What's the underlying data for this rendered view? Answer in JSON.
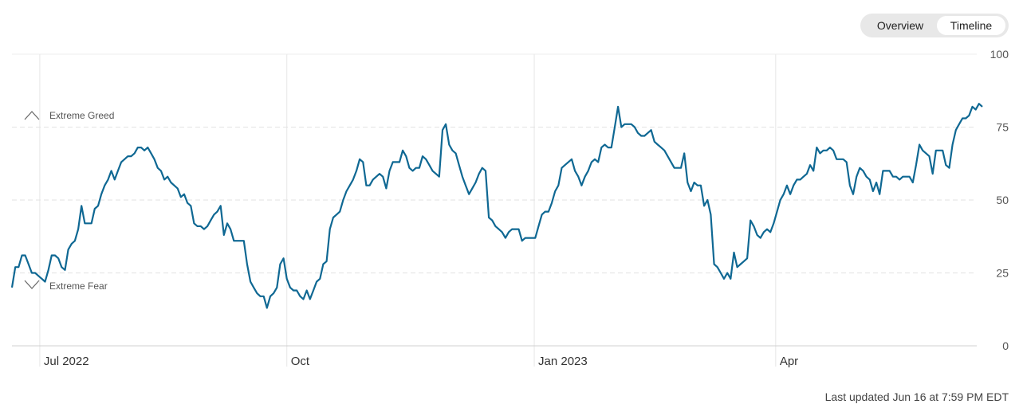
{
  "header": {
    "buttons": [
      "Overview",
      "Timeline"
    ]
  },
  "chart_data": {
    "type": "line",
    "annotations": [
      "Extreme Greed",
      "Extreme Fear"
    ],
    "color": "#0f6893",
    "values": [
      20,
      27,
      27,
      31,
      31,
      28,
      25,
      25,
      24,
      23,
      22,
      26,
      31,
      31,
      30,
      27,
      26,
      33,
      35,
      36,
      40,
      48,
      42,
      42,
      42,
      47,
      48,
      52,
      55,
      57,
      60,
      57,
      60,
      63,
      64,
      65,
      65,
      66,
      68,
      68,
      67,
      68,
      66,
      64,
      61,
      60,
      57,
      58,
      56,
      55,
      54,
      51,
      52,
      49,
      48,
      42,
      41,
      41,
      40,
      41,
      43,
      45,
      46,
      48,
      38,
      42,
      40,
      36,
      36,
      36,
      36,
      28,
      22,
      20,
      18,
      17,
      17,
      13,
      17,
      18,
      20,
      28,
      30,
      23,
      20,
      19,
      19,
      17,
      16,
      19,
      16,
      19,
      22,
      23,
      28,
      29,
      40,
      44,
      45,
      46,
      50,
      53,
      55,
      57,
      60,
      64,
      63,
      55,
      55,
      57,
      58,
      59,
      58,
      54,
      60,
      63,
      63,
      63,
      67,
      65,
      61,
      60,
      61,
      61,
      65,
      64,
      62,
      60,
      59,
      58,
      74,
      76,
      69,
      67,
      66,
      62,
      58,
      55,
      52,
      54,
      56,
      59,
      61,
      60,
      44,
      43,
      41,
      40,
      39,
      37,
      39,
      40,
      40,
      40,
      36,
      37,
      37,
      37,
      37,
      41,
      45,
      46,
      46,
      49,
      53,
      55,
      61,
      62,
      63,
      64,
      60,
      58,
      55,
      58,
      60,
      63,
      64,
      63,
      68,
      69,
      68,
      68,
      75,
      82,
      75,
      76,
      76,
      76,
      75,
      73,
      72,
      72,
      73,
      74,
      70,
      69,
      68,
      67,
      65,
      63,
      61,
      61,
      61,
      66,
      56,
      53,
      56,
      55,
      55,
      48,
      50,
      45,
      28,
      27,
      25,
      23,
      25,
      23,
      32,
      27,
      28,
      29,
      30,
      43,
      41,
      38,
      37,
      39,
      40,
      39,
      42,
      46,
      50,
      52,
      55,
      52,
      55,
      57,
      57,
      58,
      59,
      62,
      60,
      68,
      66,
      67,
      67,
      68,
      67,
      64,
      64,
      64,
      63,
      55,
      52,
      58,
      61,
      60,
      58,
      57,
      53,
      56,
      52,
      60,
      60,
      60,
      58,
      58,
      57,
      58,
      58,
      58,
      56,
      62,
      69,
      67,
      66,
      65,
      59,
      67,
      67,
      67,
      62,
      61,
      69,
      74,
      76,
      78,
      78,
      79,
      82,
      81,
      83,
      82
    ],
    "xlim": [
      0,
      293
    ],
    "xticks": [
      {
        "value": 8.4,
        "label": "Jul 2022"
      },
      {
        "value": 83.0,
        "label": "Oct"
      },
      {
        "value": 157.7,
        "label": "Jan 2023"
      },
      {
        "value": 230.6,
        "label": "Apr"
      }
    ],
    "ylim": [
      0,
      100
    ],
    "yticks": [
      0,
      25,
      50,
      75,
      100
    ],
    "grid": true
  },
  "footer": "Last updated Jun 16 at 7:59 PM EDT"
}
